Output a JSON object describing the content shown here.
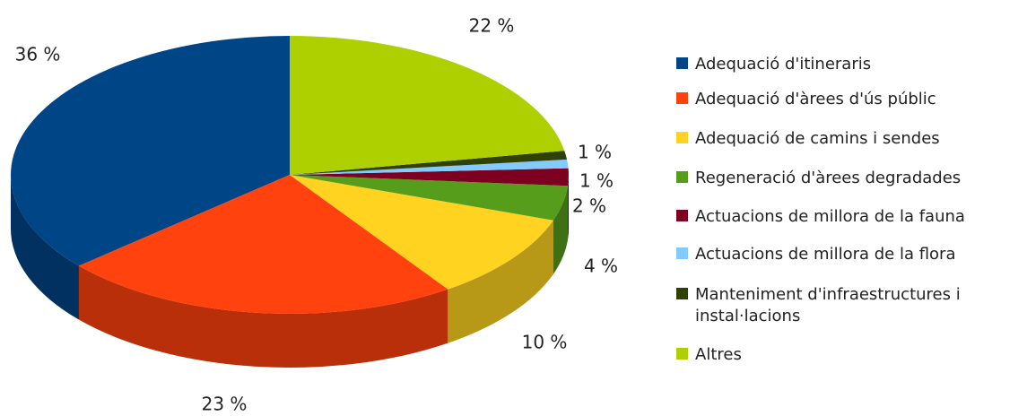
{
  "chart_data": {
    "type": "pie",
    "categories": [
      "Adequació d'itineraris",
      "Adequació d'àrees d'ús públic",
      "Adequació de camins i sendes",
      "Regeneració d'àrees degradades",
      "Actuacions de millora de la fauna",
      "Actuacions de millora de la flora",
      "Manteniment d'infraestructures i instal·lacions",
      "Altres"
    ],
    "values": [
      36,
      23,
      10,
      4,
      2,
      1,
      1,
      22
    ],
    "value_labels": [
      "36 %",
      "23 %",
      "10 %",
      "4 %",
      "2 %",
      "1 %",
      "1 %",
      "22 %"
    ],
    "colors": [
      "#004586",
      "#ff420e",
      "#ffd320",
      "#579d1c",
      "#7e0021",
      "#83caff",
      "#314004",
      "#aecf00"
    ],
    "legend": "right"
  }
}
